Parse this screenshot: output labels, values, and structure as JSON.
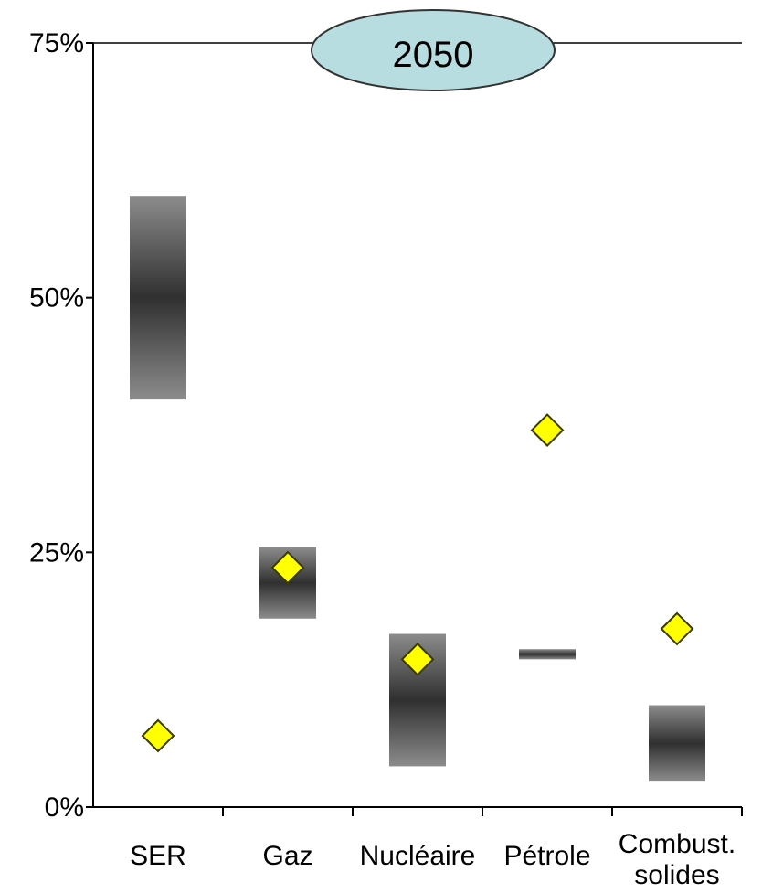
{
  "chart_data": {
    "type": "range-bar-with-markers",
    "year_label": "2050",
    "categories": [
      "SER",
      "Gaz",
      "Nucléaire",
      "Pétrole",
      "Combust.\nsolides"
    ],
    "y_ticks": [
      "0%",
      "25%",
      "50%",
      "75%"
    ],
    "ylim": [
      0,
      75
    ],
    "ranges": [
      {
        "low": 40,
        "high": 60
      },
      {
        "low": 18.5,
        "high": 25.5
      },
      {
        "low": 4,
        "high": 17
      },
      {
        "low": 14.5,
        "high": 15.5
      },
      {
        "low": 2.5,
        "high": 10
      }
    ],
    "markers": [
      7,
      23.5,
      14.5,
      37,
      17.5
    ],
    "colors": {
      "range_dark": "#303030",
      "range_light": "#8c8c8c",
      "marker_fill": "#ffff00",
      "marker_stroke": "#3a3a00",
      "year_fill": "#b7dde1"
    }
  }
}
